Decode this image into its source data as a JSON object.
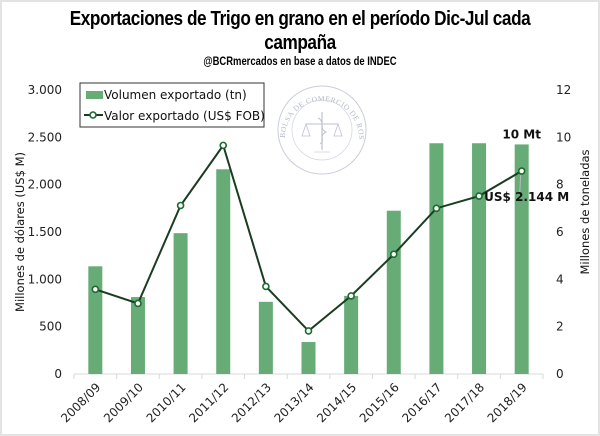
{
  "chart_data": {
    "type": "bar+line",
    "title_line1": "Exportaciones de Trigo en grano en el período Dic-Jul cada",
    "title_line2": "campaña",
    "subtitle": "@BCRmercados en base a datos de INDEC",
    "categories": [
      "2008/09",
      "2009/10",
      "2010/11",
      "2011/12",
      "2012/13",
      "2013/14",
      "2014/15",
      "2015/16",
      "2016/17",
      "2017/18",
      "2018/19"
    ],
    "series": [
      {
        "name": "Volumen exportado (tn)",
        "type": "bar",
        "axis": "right",
        "unit": "Millones de toneladas",
        "color": "#67ab77",
        "values": [
          4.55,
          3.25,
          5.95,
          8.65,
          3.05,
          1.35,
          3.3,
          6.9,
          9.75,
          9.75,
          9.7
        ]
      },
      {
        "name": "Valor exportado (US$ FOB)",
        "type": "line",
        "axis": "left",
        "unit": "Millones de dólares (US$ M)",
        "color": "#1a3d22",
        "values": [
          895,
          745,
          1780,
          2415,
          925,
          455,
          825,
          1265,
          1750,
          1880,
          2144
        ]
      }
    ],
    "ylabel_left": "Millones de dólares (US$ M)",
    "ylabel_right": "Millones de toneladas",
    "ylim_left": [
      0,
      3000
    ],
    "ylim_right": [
      0,
      12
    ],
    "yticks_left": [
      "0",
      "500",
      "1.000",
      "1.500",
      "2.000",
      "2.500",
      "3.000"
    ],
    "yticks_right": [
      "0",
      "2",
      "4",
      "6",
      "8",
      "10",
      "12"
    ],
    "grid": false,
    "legend_position": "top-left",
    "annotations": [
      {
        "text": "10 Mt",
        "category": "2018/19",
        "target": "bar"
      },
      {
        "text": "US$ 2.144 M",
        "category": "2018/19",
        "target": "line"
      }
    ],
    "watermark": "BOLSA DE COMERCIO DE ROSARIO"
  }
}
